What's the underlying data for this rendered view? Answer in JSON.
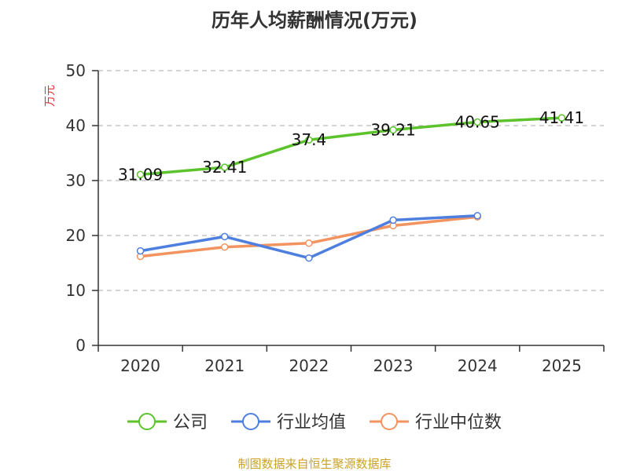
{
  "colors": {
    "company": "#5cc32c",
    "industry_avg": "#4e7fde",
    "industry_median": "#f39360",
    "axis": "#333333",
    "grid": "#bbbbbb",
    "ylabel": "#e0312c",
    "footer": "#c9a227"
  },
  "chart_data": {
    "type": "line",
    "title": "历年人均薪酬情况(万元)",
    "ylabel": "万元",
    "xlabel": "",
    "categories": [
      "2020",
      "2021",
      "2022",
      "2023",
      "2024",
      "2025"
    ],
    "ylim": [
      0,
      50
    ],
    "yticks": [
      0,
      10,
      20,
      30,
      40,
      50
    ],
    "grid": true,
    "legend_position": "bottom",
    "series": [
      {
        "name": "公司",
        "key": "company",
        "values": [
          31.09,
          32.41,
          37.4,
          39.21,
          40.65,
          41.41
        ],
        "labels": [
          "31.09",
          "32.41",
          "37.4",
          "39.21",
          "40.65",
          "41.41"
        ]
      },
      {
        "name": "行业均值",
        "key": "industry_avg",
        "values": [
          17.2,
          19.8,
          15.9,
          22.8,
          23.6,
          null
        ]
      },
      {
        "name": "行业中位数",
        "key": "industry_median",
        "values": [
          16.2,
          17.9,
          18.6,
          21.8,
          23.4,
          null
        ]
      }
    ]
  },
  "footer": "制图数据来自恒生聚源数据库"
}
